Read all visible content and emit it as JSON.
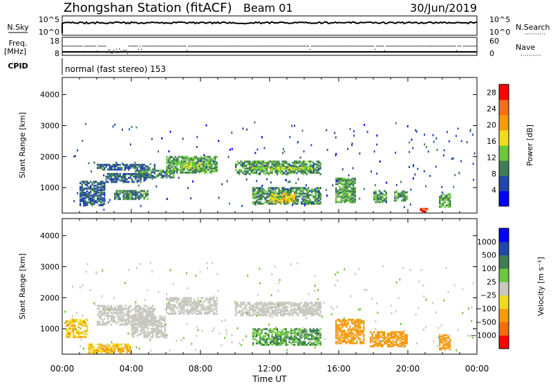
{
  "header": {
    "title": "Zhongshan Station (fitACF)",
    "beam": "Beam 01",
    "date": "30/Jun/2019"
  },
  "top_panels": {
    "nsky_label": "N.Sky",
    "nsky_ticks": [
      "10^5",
      "10^0"
    ],
    "nsearch_label": "N.Search",
    "nsearch_ticks": [
      "10^5",
      "10^0"
    ],
    "freq_label": "Freq.",
    "freq_unit": "[MHz]",
    "freq_ticks": [
      "18",
      "8"
    ],
    "nave_label": "Nave",
    "nave_ticks": [
      "60",
      "0"
    ],
    "cpid_label": "CPID",
    "cpid_value": "normal (fast stereo) 153"
  },
  "colors": {
    "power": [
      "#0000ff",
      "#2148a8",
      "#3f7d52",
      "#6cc83c",
      "#f0dc1e",
      "#f59b0f",
      "#f0701e",
      "#ff0000"
    ],
    "velocity": [
      "#ff0000",
      "#f06e10",
      "#f59b0f",
      "#f0dc1e",
      "#c8c8c0",
      "#6cc83c",
      "#3f7d52",
      "#2148a8",
      "#0000ff"
    ]
  },
  "chart_data": [
    {
      "type": "heatmap",
      "name": "power",
      "ylabel": "Slant Range [km]",
      "yticks": [
        "1000",
        "2000",
        "3000",
        "4000"
      ],
      "ylim": [
        180,
        4550
      ],
      "xlim": [
        0,
        24
      ],
      "colorbar": {
        "label": "Power [dB]",
        "ticks": [
          "4",
          "8",
          "12",
          "16",
          "20",
          "24",
          "28"
        ],
        "range": [
          0,
          30
        ]
      },
      "regions": [
        {
          "t": [
            2.0,
            5.4
          ],
          "r": [
            1550,
            1750
          ],
          "v": 7
        },
        {
          "t": [
            2.5,
            5.0
          ],
          "r": [
            1150,
            1450
          ],
          "v": 7
        },
        {
          "t": [
            4.2,
            6.5
          ],
          "r": [
            1300,
            1550
          ],
          "v": 9
        },
        {
          "t": [
            6.0,
            9.0
          ],
          "r": [
            1450,
            2000
          ],
          "v": 11
        },
        {
          "t": [
            6.8,
            8.5
          ],
          "r": [
            1600,
            1800
          ],
          "v": 14
        },
        {
          "t": [
            10.0,
            15.0
          ],
          "r": [
            1400,
            1850
          ],
          "v": 10
        },
        {
          "t": [
            11.0,
            14.5
          ],
          "r": [
            1550,
            1650
          ],
          "v": 14
        },
        {
          "t": [
            11.0,
            15.0
          ],
          "r": [
            450,
            1000
          ],
          "v": 10
        },
        {
          "t": [
            12.0,
            13.5
          ],
          "r": [
            500,
            800
          ],
          "v": 17
        },
        {
          "t": [
            3.0,
            5.0
          ],
          "r": [
            600,
            900
          ],
          "v": 9
        },
        {
          "t": [
            1.0,
            2.5
          ],
          "r": [
            400,
            1200
          ],
          "v": 7
        },
        {
          "t": [
            15.8,
            17.0
          ],
          "r": [
            500,
            1300
          ],
          "v": 11
        },
        {
          "t": [
            18.0,
            18.8
          ],
          "r": [
            500,
            900
          ],
          "v": 10
        },
        {
          "t": [
            19.2,
            20.0
          ],
          "r": [
            550,
            900
          ],
          "v": 10
        },
        {
          "t": [
            21.8,
            22.5
          ],
          "r": [
            350,
            800
          ],
          "v": 12
        },
        {
          "t": [
            20.7,
            21.2
          ],
          "r": [
            200,
            320
          ],
          "v": 26
        }
      ],
      "scatter": {
        "t": [
          0,
          24
        ],
        "r": [
          250,
          3100
        ],
        "n": 220,
        "v": 6
      }
    },
    {
      "type": "heatmap",
      "name": "velocity",
      "ylabel": "Slant Range [km]",
      "yticks": [
        "1000",
        "2000",
        "3000",
        "4000"
      ],
      "ylim": [
        180,
        4550
      ],
      "xlim": [
        0,
        24
      ],
      "xticks": [
        "00:00",
        "04:00",
        "08:00",
        "12:00",
        "16:00",
        "20:00",
        "00:00"
      ],
      "xlabel": "Time UT",
      "colorbar": {
        "label": "Velocity [m s⁻¹]",
        "ticks": [
          "1000",
          "500",
          "100",
          "25",
          "−25",
          "−100",
          "−500",
          "−1000"
        ]
      },
      "regions": [
        {
          "t": [
            2.0,
            5.4
          ],
          "r": [
            1100,
            1750
          ],
          "v": 0
        },
        {
          "t": [
            6.0,
            9.0
          ],
          "r": [
            1450,
            2000
          ],
          "v": 0
        },
        {
          "t": [
            10.0,
            15.0
          ],
          "r": [
            1400,
            1850
          ],
          "v": 0
        },
        {
          "t": [
            4.0,
            6.0
          ],
          "r": [
            700,
            1400
          ],
          "v": 0
        },
        {
          "t": [
            11.0,
            15.0
          ],
          "r": [
            450,
            1000
          ],
          "v": 100
        },
        {
          "t": [
            15.8,
            17.5
          ],
          "r": [
            500,
            1300
          ],
          "v": -300
        },
        {
          "t": [
            17.8,
            20.0
          ],
          "r": [
            400,
            900
          ],
          "v": -300
        },
        {
          "t": [
            21.8,
            22.5
          ],
          "r": [
            300,
            800
          ],
          "v": -300
        },
        {
          "t": [
            0.2,
            1.5
          ],
          "r": [
            700,
            1300
          ],
          "v": -100
        },
        {
          "t": [
            1.5,
            4.0
          ],
          "r": [
            200,
            500
          ],
          "v": -100
        }
      ],
      "scatter": {
        "t": [
          0,
          24
        ],
        "r": [
          250,
          3100
        ],
        "n": 220,
        "v": 20
      }
    }
  ]
}
